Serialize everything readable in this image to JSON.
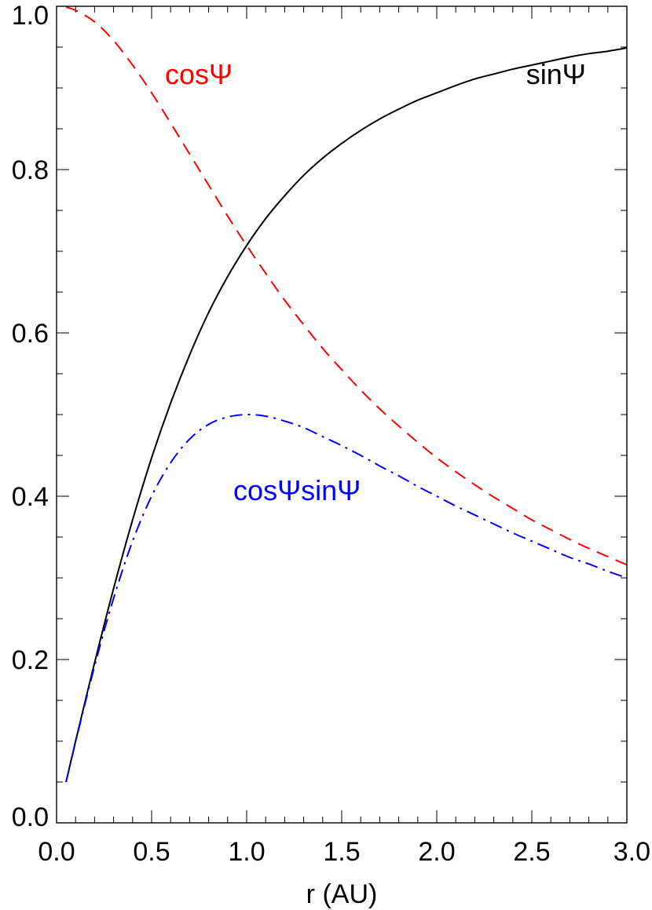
{
  "chart_data": {
    "type": "line",
    "title": "",
    "xlabel": "r (AU)",
    "ylabel": "",
    "xlim": [
      0.0,
      3.0
    ],
    "ylim": [
      0.0,
      1.0
    ],
    "x_ticks": [
      "0.0",
      "0.5",
      "1.0",
      "1.5",
      "2.0",
      "2.5",
      "3.0"
    ],
    "y_ticks": [
      "0.0",
      "0.2",
      "0.4",
      "0.6",
      "0.8",
      "1.0"
    ],
    "x_minor_step": 0.1,
    "y_minor_step": 0.05,
    "grid": false,
    "legend": "none",
    "x": [
      0.05,
      0.1,
      0.2,
      0.3,
      0.4,
      0.5,
      0.6,
      0.7,
      0.8,
      0.9,
      1.0,
      1.1,
      1.2,
      1.3,
      1.4,
      1.5,
      1.6,
      1.7,
      1.8,
      1.9,
      2.0,
      2.1,
      2.2,
      2.3,
      2.4,
      2.5,
      2.6,
      2.7,
      2.8,
      2.9,
      3.0
    ],
    "series": [
      {
        "name": "sinΨ",
        "color": "#000000",
        "dash": "solid",
        "values": [
          0.05,
          0.1,
          0.196,
          0.287,
          0.371,
          0.447,
          0.514,
          0.573,
          0.625,
          0.669,
          0.707,
          0.74,
          0.768,
          0.793,
          0.814,
          0.832,
          0.848,
          0.862,
          0.874,
          0.885,
          0.894,
          0.903,
          0.911,
          0.917,
          0.923,
          0.928,
          0.933,
          0.938,
          0.942,
          0.945,
          0.949
        ]
      },
      {
        "name": "cosΨ",
        "color": "#ff0000",
        "dash": "dashed",
        "values": [
          0.999,
          0.995,
          0.981,
          0.958,
          0.928,
          0.894,
          0.857,
          0.819,
          0.781,
          0.743,
          0.707,
          0.673,
          0.64,
          0.61,
          0.581,
          0.555,
          0.53,
          0.507,
          0.486,
          0.466,
          0.447,
          0.43,
          0.414,
          0.399,
          0.385,
          0.371,
          0.359,
          0.347,
          0.336,
          0.326,
          0.316
        ]
      },
      {
        "name": "cosΨsinΨ",
        "color": "#0000ff",
        "dash": "dash-dot",
        "values": [
          0.05,
          0.099,
          0.192,
          0.275,
          0.345,
          0.4,
          0.441,
          0.47,
          0.488,
          0.497,
          0.5,
          0.498,
          0.492,
          0.484,
          0.473,
          0.462,
          0.45,
          0.437,
          0.425,
          0.412,
          0.4,
          0.388,
          0.377,
          0.366,
          0.355,
          0.345,
          0.335,
          0.325,
          0.317,
          0.308,
          0.3
        ]
      }
    ],
    "annotations": [
      {
        "text": "cosΨ",
        "color": "#ff0000",
        "x": 0.57,
        "y": 0.905
      },
      {
        "text": "sinΨ",
        "color": "#000000",
        "x": 2.47,
        "y": 0.905
      },
      {
        "text": "cosΨsinΨ",
        "color": "#0000ff",
        "x": 0.93,
        "y": 0.395
      }
    ]
  }
}
